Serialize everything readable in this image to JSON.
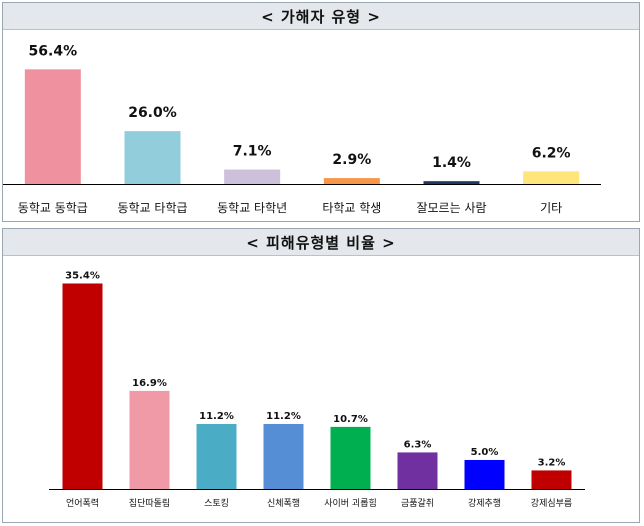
{
  "chart_data": [
    {
      "type": "bar",
      "title": "< 가해자 유형 >",
      "categories": [
        "동학교 동학급",
        "동학교 타학급",
        "동학교 타학년",
        "타학교 학생",
        "잘모르는 사람",
        "기타"
      ],
      "values": [
        56.4,
        26.0,
        7.1,
        2.9,
        1.4,
        6.2
      ],
      "labels": [
        "56.4%",
        "26.0%",
        "7.1%",
        "2.9%",
        "1.4%",
        "6.2%"
      ],
      "colors": [
        "#f0919f",
        "#92cddc",
        "#ccc0da",
        "#f79646",
        "#1f3864",
        "#ffe57a"
      ],
      "ylim": [
        0,
        60
      ]
    },
    {
      "type": "bar",
      "title": "< 피해유형별 비율 >",
      "categories": [
        "언어폭력",
        "집단따돌림",
        "스토킹",
        "신체폭행",
        "사이버 괴롭힘",
        "금품갈취",
        "강제추행",
        "강제심부름"
      ],
      "values": [
        35.4,
        16.9,
        11.2,
        11.2,
        10.7,
        6.3,
        5.0,
        3.2
      ],
      "labels": [
        "35.4%",
        "16.9%",
        "11.2%",
        "11.2%",
        "10.7%",
        "6.3%",
        "5.0%",
        "3.2%"
      ],
      "colors": [
        "#c00000",
        "#f09aa8",
        "#4bacc6",
        "#558ed5",
        "#00b050",
        "#7030a0",
        "#0000ff",
        "#c00000"
      ],
      "ylim": [
        0,
        36
      ]
    }
  ]
}
